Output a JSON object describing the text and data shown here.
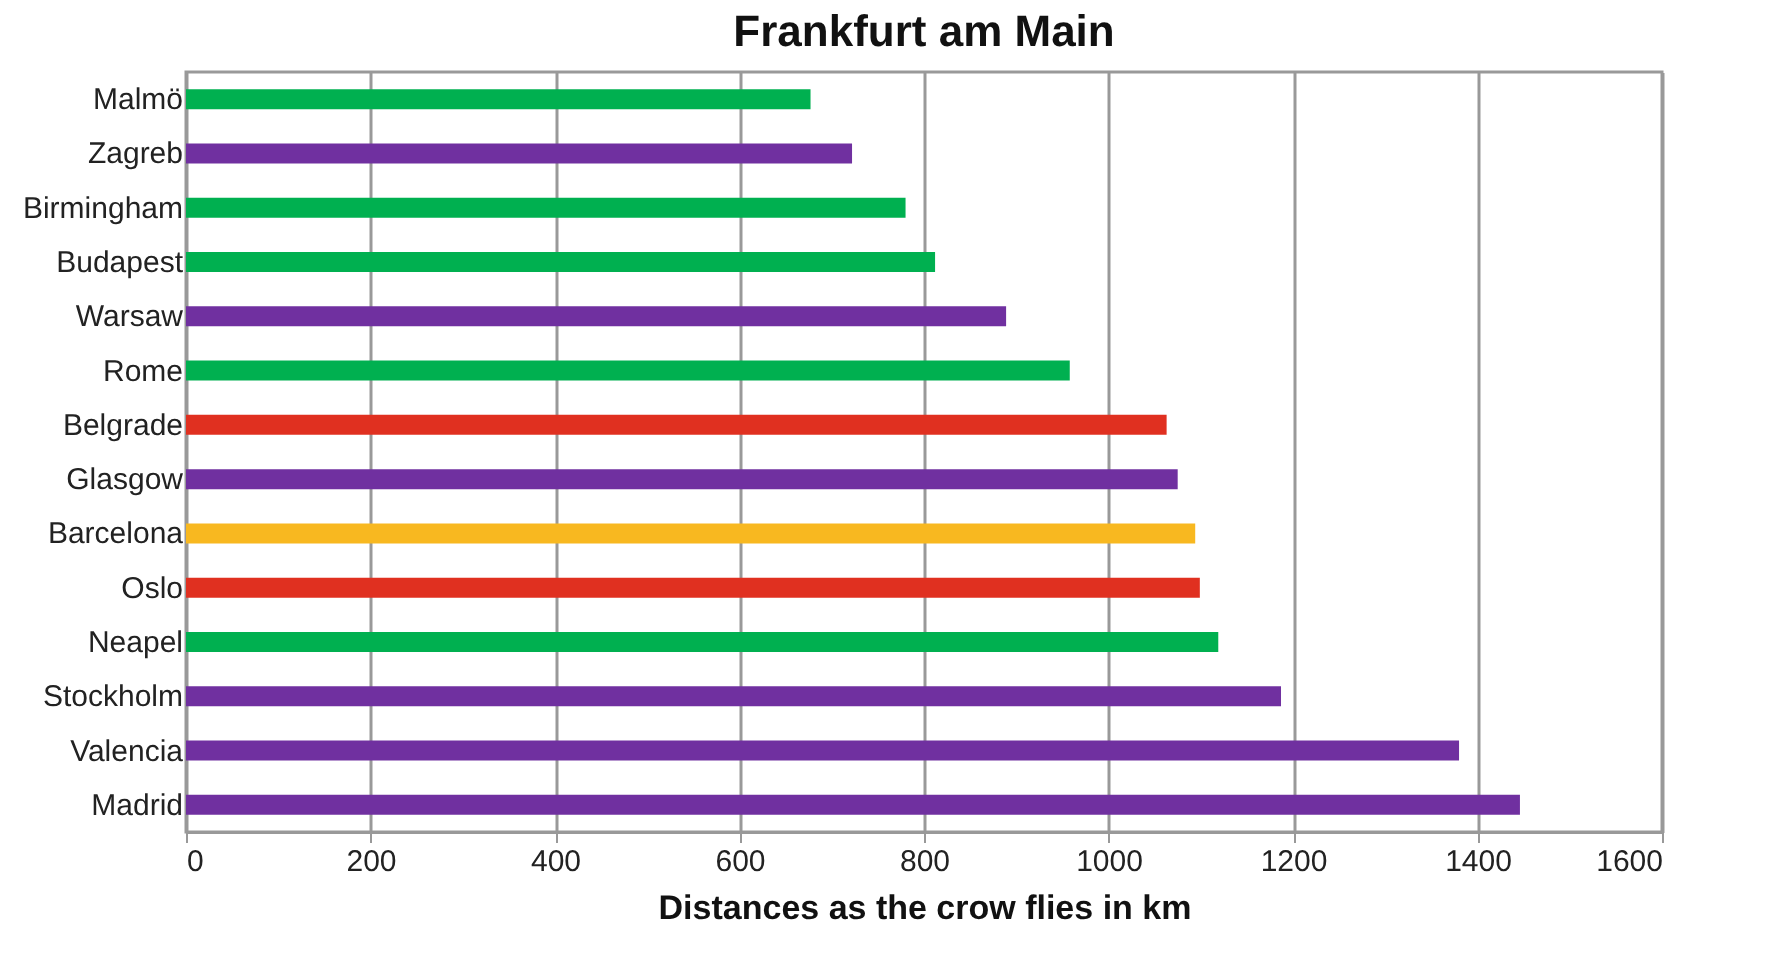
{
  "chart_data": {
    "type": "bar",
    "orientation": "horizontal",
    "title": "Frankfurt am Main",
    "xlabel": "Distances as the crow flies in km",
    "categories": [
      "Malmö",
      "Zagreb",
      "Birmingham",
      "Budapest",
      "Warsaw",
      "Rome",
      "Belgrade",
      "Glasgow",
      "Barcelona",
      "Oslo",
      "Neapel",
      "Stockholm",
      "Valencia",
      "Madrid"
    ],
    "values": [
      677,
      722,
      780,
      812,
      889,
      958,
      1063,
      1075,
      1094,
      1099,
      1119,
      1187,
      1380,
      1446
    ],
    "colors": [
      "#00b050",
      "#7030a0",
      "#00b050",
      "#00b050",
      "#7030a0",
      "#00b050",
      "#e03020",
      "#7030a0",
      "#f8b820",
      "#e03020",
      "#00b050",
      "#7030a0",
      "#7030a0",
      "#7030a0"
    ],
    "xlim": [
      0,
      1600
    ],
    "xticks": [
      0,
      200,
      400,
      600,
      800,
      1000,
      1200,
      1400,
      1600
    ],
    "grid": "x"
  }
}
